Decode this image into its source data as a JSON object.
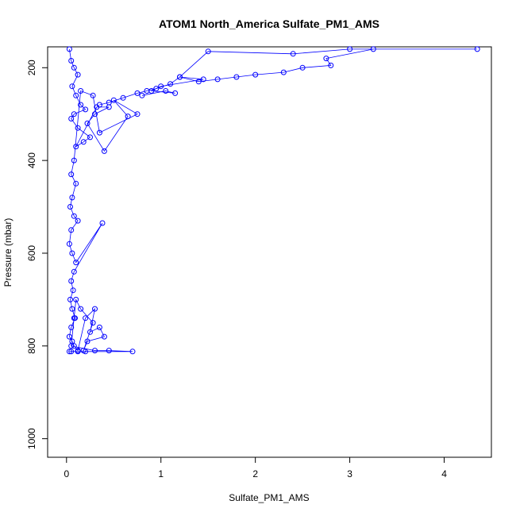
{
  "chart_data": {
    "type": "scatter",
    "title": "ATOM1 North_America Sulfate_PM1_AMS",
    "xlabel": "Sulfate_PM1_AMS",
    "ylabel": "Pressure (mbar)",
    "xlim": [
      -0.2,
      4.5
    ],
    "ylim": [
      1040,
      155
    ],
    "y_reversed": true,
    "x_ticks": [
      0,
      1,
      2,
      3,
      4
    ],
    "y_ticks": [
      200,
      400,
      600,
      800,
      1000
    ],
    "grid": false,
    "legend": "none",
    "series_color": "#0000ff",
    "marker": "open-circle",
    "connect_points": true,
    "series": [
      {
        "x": [
          0.03,
          0.05,
          0.08,
          0.12,
          0.06,
          0.1,
          0.15,
          0.2,
          0.08,
          0.05,
          0.12,
          0.25,
          0.18,
          0.1,
          0.32,
          0.45,
          0.3,
          0.22,
          0.4,
          0.65,
          0.5,
          0.75,
          0.35,
          0.28,
          0.15,
          0.08,
          0.05,
          0.1,
          0.06,
          0.04,
          0.08,
          0.12,
          0.05,
          0.03,
          0.06,
          0.1,
          0.38,
          0.08,
          0.05,
          0.07,
          0.04,
          0.06,
          0.09,
          0.05,
          0.03,
          0.06,
          0.08,
          0.12,
          0.2,
          0.3,
          0.25,
          0.35,
          0.4,
          0.22,
          0.18,
          0.28,
          0.15,
          0.1,
          0.08,
          0.05,
          0.3,
          0.45,
          0.7,
          0.2,
          0.12,
          0.05,
          0.03
        ],
        "y": [
          160,
          185,
          200,
          215,
          240,
          260,
          280,
          290,
          300,
          310,
          330,
          350,
          360,
          370,
          285,
          285,
          300,
          320,
          380,
          305,
          270,
          300,
          340,
          260,
          250,
          400,
          430,
          450,
          480,
          500,
          520,
          530,
          550,
          580,
          600,
          620,
          535,
          640,
          660,
          680,
          700,
          720,
          740,
          760,
          780,
          790,
          800,
          810,
          740,
          720,
          770,
          760,
          780,
          790,
          810,
          750,
          720,
          700,
          740,
          800,
          810,
          810,
          812,
          812,
          812,
          812,
          812
        ]
      },
      {
        "x": [
          3.25,
          2.75,
          2.8,
          2.5,
          2.3,
          2.0,
          1.8,
          1.6,
          1.4,
          1.2,
          1.1,
          0.95,
          0.85,
          0.75,
          0.6,
          0.45,
          0.35
        ],
        "y": [
          160,
          180,
          195,
          200,
          210,
          215,
          220,
          225,
          230,
          220,
          235,
          245,
          250,
          255,
          265,
          275,
          280
        ]
      },
      {
        "x": [
          4.35,
          3.0,
          2.4,
          1.5,
          1.2,
          1.45,
          1.0,
          0.9,
          1.15,
          1.05,
          0.8
        ],
        "y": [
          160,
          160,
          170,
          165,
          220,
          225,
          240,
          250,
          255,
          250,
          260
        ]
      }
    ]
  }
}
